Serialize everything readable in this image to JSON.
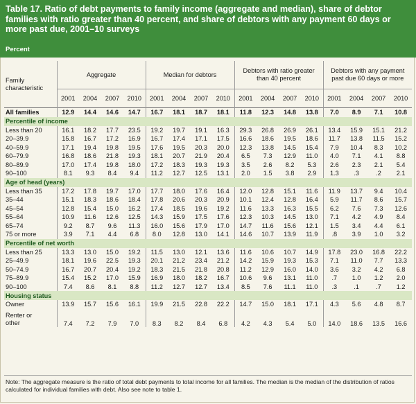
{
  "title": "Table 17. Ratio of debt payments to family income (aggregate and median), share of debtor families with ratio greater than 40 percent, and share of debtors with any payment 60 days or more past due, 2001–10 surveys",
  "unit": "Percent",
  "header": {
    "characteristic": "Family characteristic",
    "groups": [
      "Aggregate",
      "Median for debtors",
      "Debtors with ratio greater than 40 percent",
      "Debtors with any payment past due 60 days or more"
    ],
    "years": [
      "2001",
      "2004",
      "2007",
      "2010"
    ]
  },
  "rows": [
    {
      "kind": "total",
      "label": "All families",
      "values": [
        "12.9",
        "14.4",
        "14.6",
        "14.7",
        "16.7",
        "18.1",
        "18.7",
        "18.1",
        "11.8",
        "12.3",
        "14.8",
        "13.8",
        "7.0",
        "8.9",
        "7.1",
        "10.8"
      ]
    },
    {
      "kind": "section",
      "label": "Percentile of income"
    },
    {
      "kind": "row",
      "label": "Less than 20",
      "values": [
        "16.1",
        "18.2",
        "17.7",
        "23.5",
        "19.2",
        "19.7",
        "19.1",
        "16.3",
        "29.3",
        "26.8",
        "26.9",
        "26.1",
        "13.4",
        "15.9",
        "15.1",
        "21.2"
      ]
    },
    {
      "kind": "row",
      "label": "20–39.9",
      "values": [
        "15.8",
        "16.7",
        "17.2",
        "16.9",
        "16.7",
        "17.4",
        "17.1",
        "17.5",
        "16.6",
        "18.6",
        "19.5",
        "18.6",
        "11.7",
        "13.8",
        "11.5",
        "15.2"
      ]
    },
    {
      "kind": "row",
      "label": "40–59.9",
      "values": [
        "17.1",
        "19.4",
        "19.8",
        "19.5",
        "17.6",
        "19.5",
        "20.3",
        "20.0",
        "12.3",
        "13.8",
        "14.5",
        "15.4",
        "7.9",
        "10.4",
        "8.3",
        "10.2"
      ]
    },
    {
      "kind": "row",
      "label": "60–79.9",
      "values": [
        "16.8",
        "18.6",
        "21.8",
        "19.3",
        "18.1",
        "20.7",
        "21.9",
        "20.4",
        "6.5",
        "7.3",
        "12.9",
        "11.0",
        "4.0",
        "7.1",
        "4.1",
        "8.8"
      ]
    },
    {
      "kind": "row",
      "label": "80–89.9",
      "values": [
        "17.0",
        "17.4",
        "19.8",
        "18.0",
        "17.2",
        "18.3",
        "19.3",
        "19.3",
        "3.5",
        "2.6",
        "8.2",
        "5.3",
        "2.6",
        "2.3",
        "2.1",
        "5.4"
      ]
    },
    {
      "kind": "row",
      "label": "90–100",
      "values": [
        "8.1",
        "9.3",
        "8.4",
        "9.4",
        "11.2",
        "12.7",
        "12.5",
        "13.1",
        "2.0",
        "1.5",
        "3.8",
        "2.9",
        "1.3",
        ".3",
        ".2",
        "2.1"
      ]
    },
    {
      "kind": "section",
      "label": "Age of head (years)"
    },
    {
      "kind": "row",
      "label": "Less than 35",
      "values": [
        "17.2",
        "17.8",
        "19.7",
        "17.0",
        "17.7",
        "18.0",
        "17.6",
        "16.4",
        "12.0",
        "12.8",
        "15.1",
        "11.6",
        "11.9",
        "13.7",
        "9.4",
        "10.4"
      ]
    },
    {
      "kind": "row",
      "label": "35–44",
      "values": [
        "15.1",
        "18.3",
        "18.6",
        "18.4",
        "17.8",
        "20.6",
        "20.3",
        "20.9",
        "10.1",
        "12.4",
        "12.8",
        "16.4",
        "5.9",
        "11.7",
        "8.6",
        "15.7"
      ]
    },
    {
      "kind": "row",
      "label": "45–54",
      "values": [
        "12.8",
        "15.4",
        "15.0",
        "16.2",
        "17.4",
        "18.5",
        "19.6",
        "19.2",
        "11.6",
        "13.3",
        "16.3",
        "15.5",
        "6.2",
        "7.6",
        "7.3",
        "12.6"
      ]
    },
    {
      "kind": "row",
      "label": "55–64",
      "values": [
        "10.9",
        "11.6",
        "12.6",
        "12.5",
        "14.3",
        "15.9",
        "17.5",
        "17.6",
        "12.3",
        "10.3",
        "14.5",
        "13.0",
        "7.1",
        "4.2",
        "4.9",
        "8.4"
      ]
    },
    {
      "kind": "row",
      "label": "65–74",
      "values": [
        "9.2",
        "8.7",
        "9.6",
        "11.3",
        "16.0",
        "15.6",
        "17.9",
        "17.0",
        "14.7",
        "11.6",
        "15.6",
        "12.1",
        "1.5",
        "3.4",
        "4.4",
        "6.1"
      ]
    },
    {
      "kind": "row",
      "label": "75 or more",
      "values": [
        "3.9",
        "7.1",
        "4.4",
        "6.8",
        "8.0",
        "12.8",
        "13.0",
        "14.1",
        "14.6",
        "10.7",
        "13.9",
        "11.9",
        ".8",
        "3.9",
        "1.0",
        "3.2"
      ]
    },
    {
      "kind": "section",
      "label": "Percentile of net worth"
    },
    {
      "kind": "row",
      "label": "Less than 25",
      "values": [
        "13.3",
        "13.0",
        "15.0",
        "19.2",
        "11.5",
        "13.0",
        "12.1",
        "13.6",
        "11.6",
        "10.6",
        "10.7",
        "14.9",
        "17.8",
        "23.0",
        "16.8",
        "22.2"
      ]
    },
    {
      "kind": "row",
      "label": "25–49.9",
      "values": [
        "18.1",
        "19.6",
        "22.5",
        "19.3",
        "20.1",
        "21.2",
        "23.4",
        "21.2",
        "14.2",
        "15.9",
        "19.3",
        "15.3",
        "7.1",
        "11.0",
        "7.7",
        "13.3"
      ]
    },
    {
      "kind": "row",
      "label": "50–74.9",
      "values": [
        "16.7",
        "20.7",
        "20.4",
        "19.2",
        "18.3",
        "21.5",
        "21.8",
        "20.8",
        "11.2",
        "12.9",
        "16.0",
        "14.0",
        "3.6",
        "3.2",
        "4.2",
        "6.8"
      ]
    },
    {
      "kind": "row",
      "label": "75–89.9",
      "values": [
        "15.4",
        "15.2",
        "17.0",
        "15.9",
        "16.9",
        "18.0",
        "18.2",
        "16.7",
        "10.6",
        "9.6",
        "13.1",
        "11.0",
        ".7",
        "1.0",
        "1.2",
        "2.0"
      ]
    },
    {
      "kind": "row",
      "label": "90–100",
      "values": [
        "7.4",
        "8.6",
        "8.1",
        "8.8",
        "11.2",
        "12.7",
        "12.7",
        "13.4",
        "8.5",
        "7.6",
        "11.1",
        "11.0",
        ".3",
        ".1",
        ".7",
        "1.2"
      ]
    },
    {
      "kind": "section",
      "label": "Housing status"
    },
    {
      "kind": "row",
      "label": "Owner",
      "values": [
        "13.9",
        "15.7",
        "15.6",
        "16.1",
        "19.9",
        "21.5",
        "22.8",
        "22.2",
        "14.7",
        "15.0",
        "18.1",
        "17.1",
        "4.3",
        "5.6",
        "4.8",
        "8.7"
      ]
    },
    {
      "kind": "row2",
      "label": "Renter or other",
      "label_lines": [
        "Renter or",
        "other"
      ],
      "values": [
        "7.4",
        "7.2",
        "7.9",
        "7.0",
        "8.3",
        "8.2",
        "8.4",
        "6.8",
        "4.2",
        "4.3",
        "5.4",
        "5.0",
        "14.0",
        "18.6",
        "13.5",
        "16.6"
      ]
    }
  ],
  "note": "Note: The aggregate measure is the ratio of total debt payments to total income for all families. The median is the median of the distribution of ratios calculated for individual families with debt. Also see note to table 1.",
  "colors": {
    "title_bar": "#3f8e3c",
    "section_band": "#d9e7c4",
    "background": "#f6f4ea"
  }
}
